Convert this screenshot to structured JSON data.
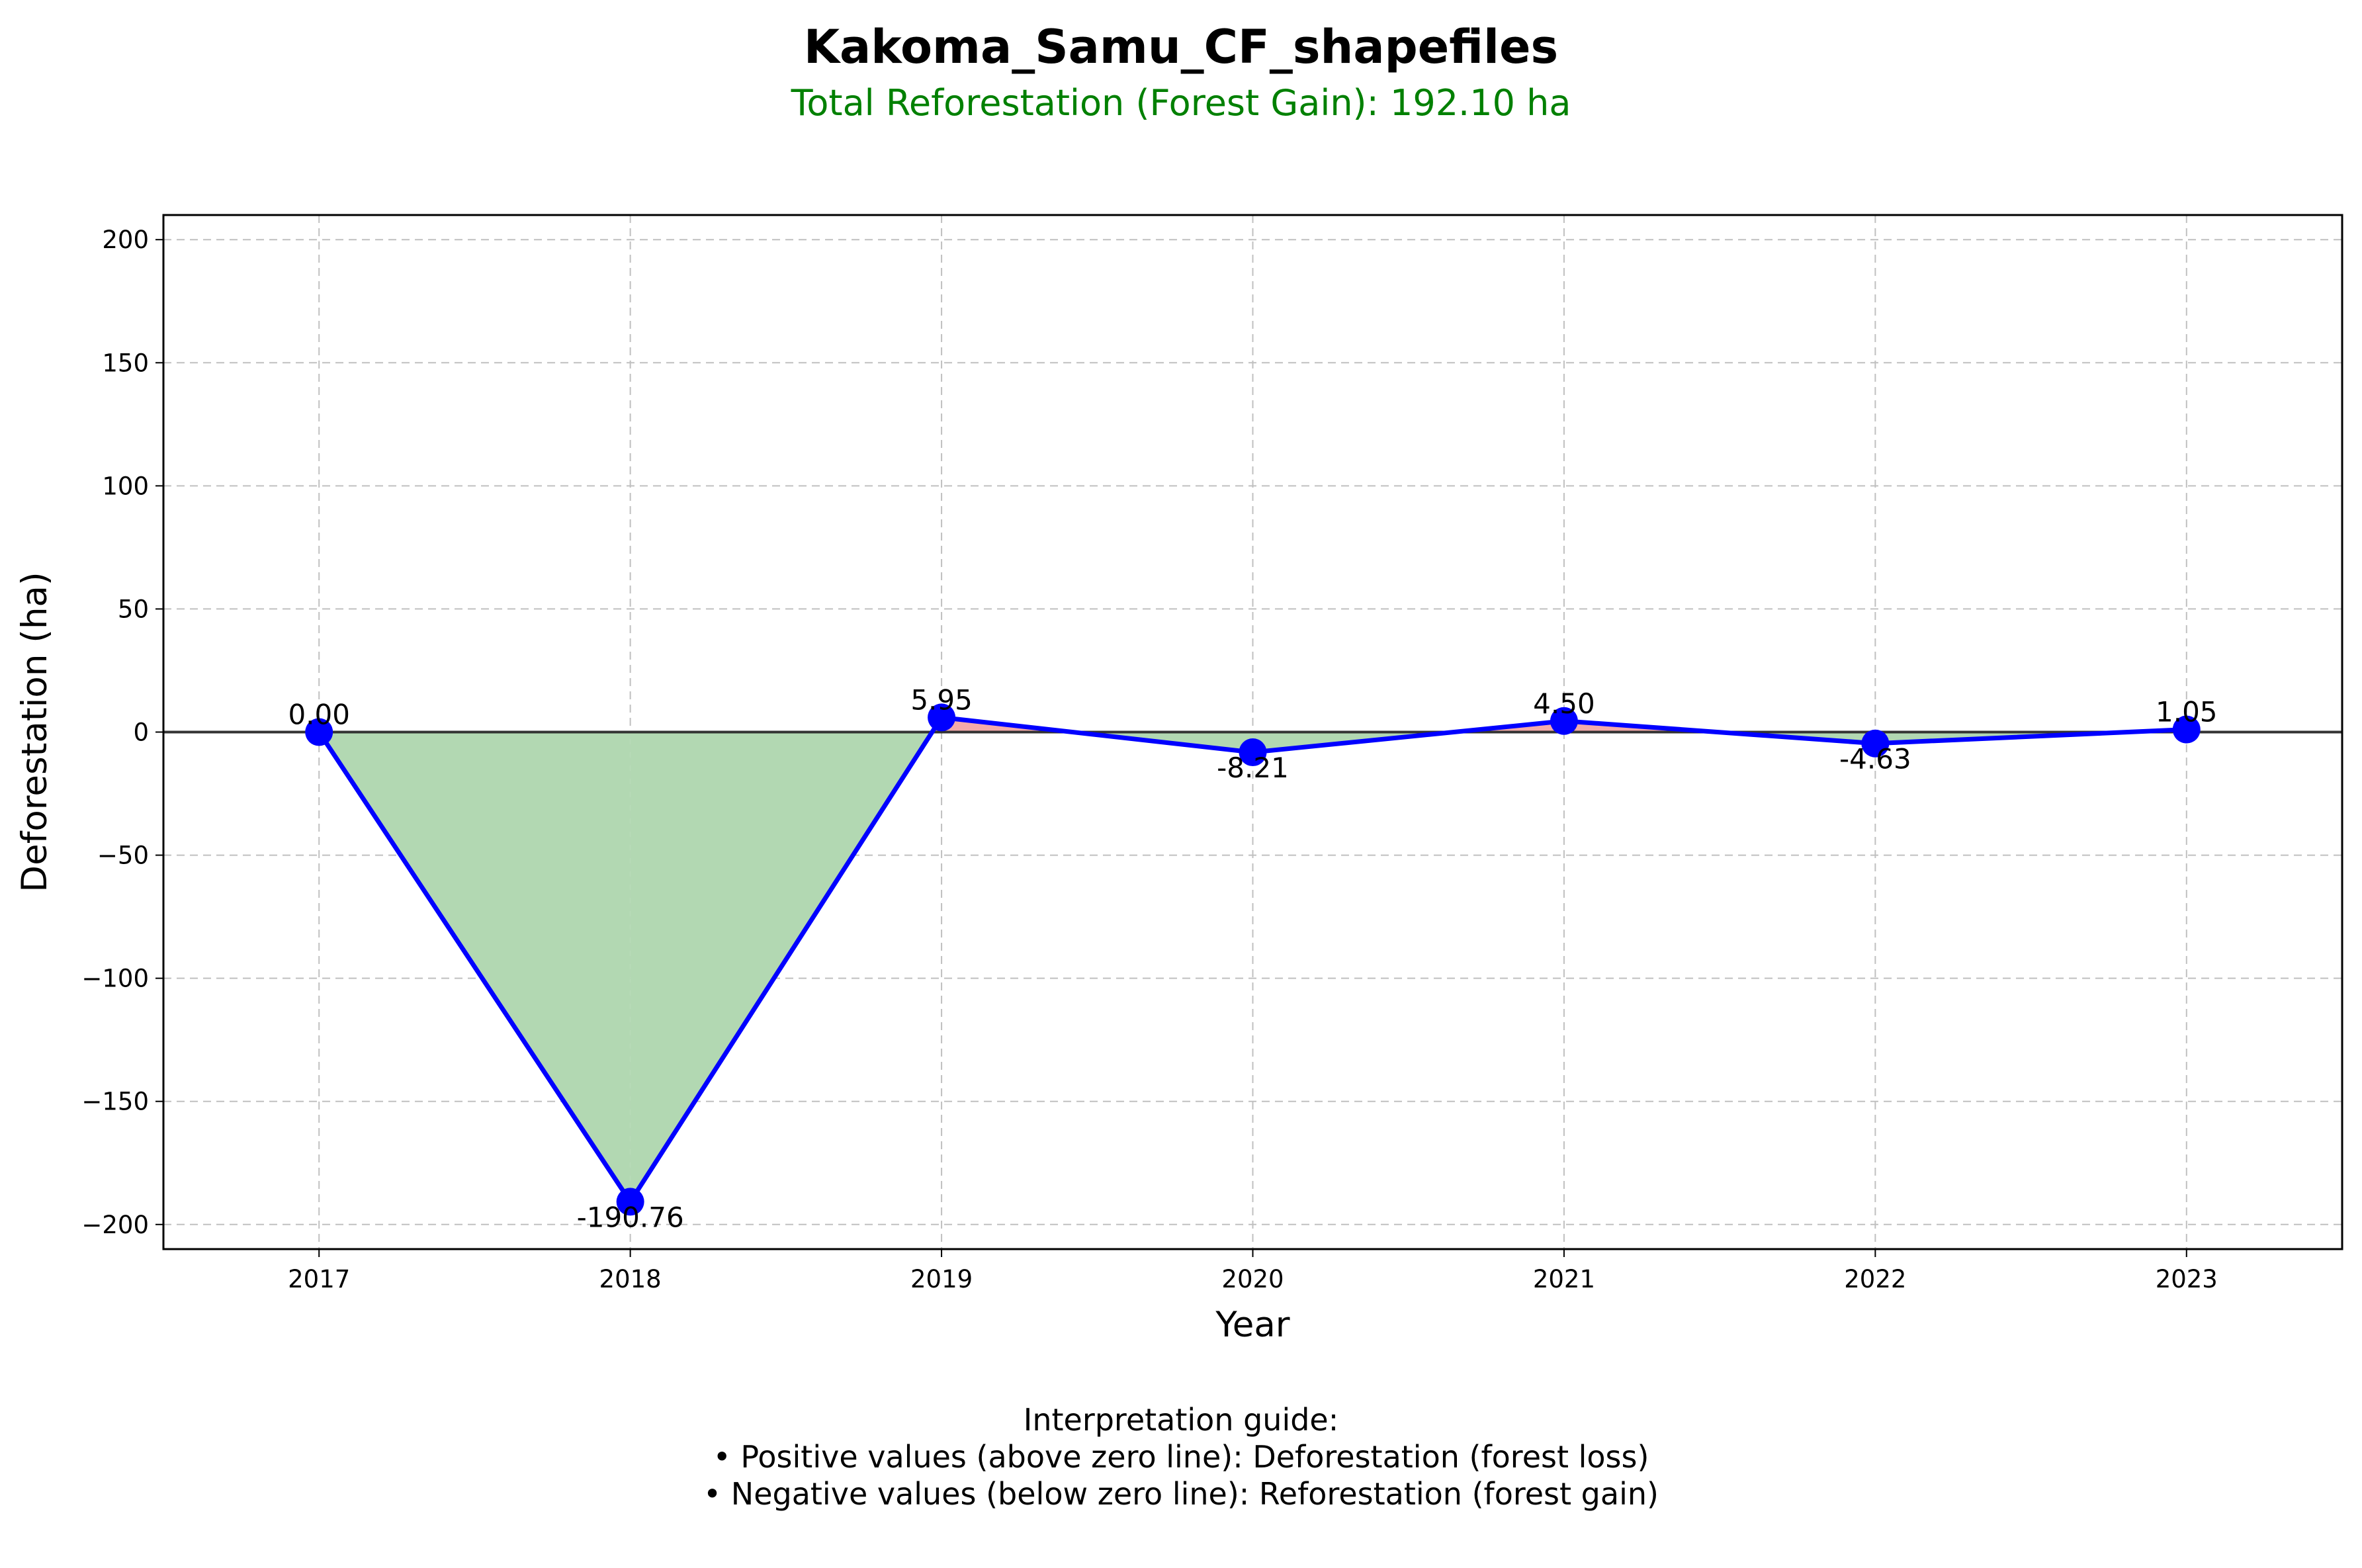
{
  "header": {
    "title": "Kakoma_Samu_CF_shapefiles",
    "subtitle": "Total Reforestation (Forest Gain): 192.10 ha"
  },
  "guide": {
    "heading": "Interpretation guide:",
    "line1": "• Positive values (above zero line): Deforestation (forest loss)",
    "line2": "• Negative values (below zero line): Reforestation (forest gain)"
  },
  "chart_data": {
    "type": "line",
    "title": "Kakoma_Samu_CF_shapefiles",
    "subtitle": "Total Reforestation (Forest Gain): 192.10 ha",
    "xlabel": "Year",
    "ylabel": "Deforestation (ha)",
    "categories": [
      "2017",
      "2018",
      "2019",
      "2020",
      "2021",
      "2022",
      "2023"
    ],
    "values": [
      0.0,
      -190.76,
      5.95,
      -8.21,
      4.5,
      -4.63,
      1.05
    ],
    "value_labels": [
      "0.00",
      "-190.76",
      "5.95",
      "-8.21",
      "4.50",
      "-4.63",
      "1.05"
    ],
    "ylim": [
      -210,
      210
    ],
    "yticks": [
      -200,
      -150,
      -100,
      -50,
      0,
      50,
      100,
      150,
      200
    ],
    "ytick_labels": [
      "−200",
      "−150",
      "−100",
      "−50",
      "0",
      "50",
      "100",
      "150",
      "200"
    ],
    "grid": true,
    "colors": {
      "line": "#0000ff",
      "marker": "#0000ff",
      "gain_fill": "#b2d8b2",
      "loss_fill": "#f4aaaa",
      "zero_line": "#333333",
      "grid": "#c0c0c0"
    }
  }
}
